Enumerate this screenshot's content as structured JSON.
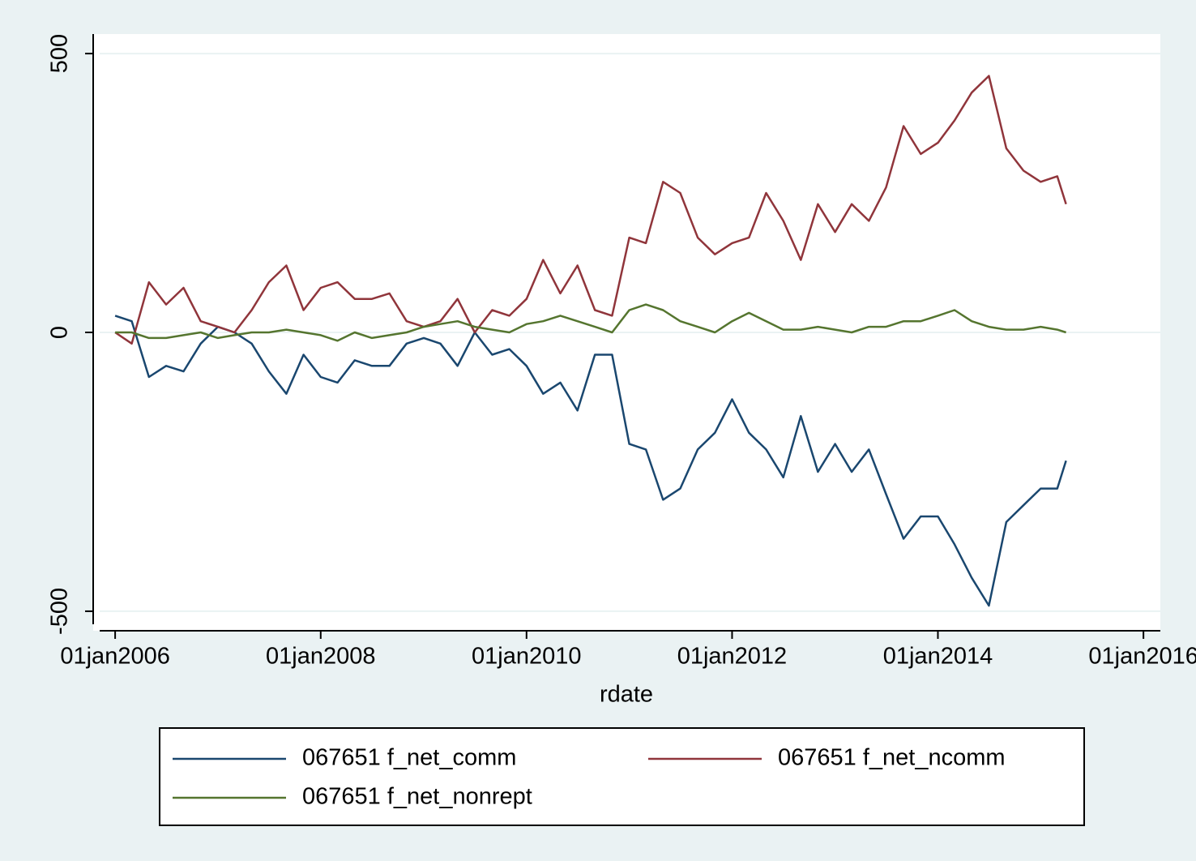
{
  "chart_data": {
    "type": "line",
    "x_label": "rdate",
    "x": [
      "2006-01-01",
      "2006-03-01",
      "2006-05-01",
      "2006-07-01",
      "2006-09-01",
      "2006-11-01",
      "2007-01-01",
      "2007-03-01",
      "2007-05-01",
      "2007-07-01",
      "2007-09-01",
      "2007-11-01",
      "2008-01-01",
      "2008-03-01",
      "2008-05-01",
      "2008-07-01",
      "2008-09-01",
      "2008-11-01",
      "2009-01-01",
      "2009-03-01",
      "2009-05-01",
      "2009-07-01",
      "2009-09-01",
      "2009-11-01",
      "2010-01-01",
      "2010-03-01",
      "2010-05-01",
      "2010-07-01",
      "2010-09-01",
      "2010-11-01",
      "2011-01-01",
      "2011-03-01",
      "2011-05-01",
      "2011-07-01",
      "2011-09-01",
      "2011-11-01",
      "2012-01-01",
      "2012-03-01",
      "2012-05-01",
      "2012-07-01",
      "2012-09-01",
      "2012-11-01",
      "2013-01-01",
      "2013-03-01",
      "2013-05-01",
      "2013-07-01",
      "2013-09-01",
      "2013-11-01",
      "2014-01-01",
      "2014-03-01",
      "2014-05-01",
      "2014-07-01",
      "2014-09-01",
      "2014-11-01",
      "2015-01-01",
      "2015-03-01",
      "2015-04-01"
    ],
    "series": [
      {
        "name": "067651 f_net_comm",
        "color": "#1a476f",
        "values": [
          30,
          20,
          -80,
          -60,
          -70,
          -20,
          10,
          0,
          -20,
          -70,
          -110,
          -40,
          -80,
          -90,
          -50,
          -60,
          -60,
          -20,
          -10,
          -20,
          -60,
          0,
          -40,
          -30,
          -60,
          -110,
          -90,
          -140,
          -40,
          -40,
          -200,
          -210,
          -300,
          -280,
          -210,
          -180,
          -120,
          -180,
          -210,
          -260,
          -150,
          -250,
          -200,
          -250,
          -210,
          -290,
          -370,
          -330,
          -330,
          -380,
          -440,
          -490,
          -340,
          -310,
          -280,
          -280,
          -230
        ]
      },
      {
        "name": "067651 f_net_ncomm",
        "color": "#90353b",
        "values": [
          0,
          -20,
          90,
          50,
          80,
          20,
          10,
          0,
          40,
          90,
          120,
          40,
          80,
          90,
          60,
          60,
          70,
          20,
          10,
          20,
          60,
          0,
          40,
          30,
          60,
          130,
          70,
          120,
          40,
          30,
          170,
          160,
          270,
          250,
          170,
          140,
          160,
          170,
          250,
          200,
          130,
          230,
          180,
          230,
          200,
          260,
          370,
          320,
          340,
          380,
          430,
          460,
          330,
          290,
          270,
          280,
          230
        ]
      },
      {
        "name": "067651 f_net_nonrept",
        "color": "#55752f",
        "values": [
          0,
          0,
          -10,
          -10,
          -5,
          0,
          -10,
          -5,
          0,
          0,
          5,
          0,
          -5,
          -15,
          0,
          -10,
          -5,
          0,
          10,
          15,
          20,
          10,
          5,
          0,
          15,
          20,
          30,
          20,
          10,
          0,
          40,
          50,
          40,
          20,
          10,
          0,
          20,
          35,
          20,
          5,
          5,
          10,
          5,
          0,
          10,
          10,
          20,
          20,
          30,
          40,
          20,
          10,
          5,
          5,
          10,
          5,
          0
        ]
      }
    ],
    "xlim": [
      "2005-10-15",
      "2016-03-01"
    ],
    "xticks": [
      {
        "value": "2006-01-01",
        "label": "01jan2006"
      },
      {
        "value": "2008-01-01",
        "label": "01jan2008"
      },
      {
        "value": "2010-01-01",
        "label": "01jan2010"
      },
      {
        "value": "2012-01-01",
        "label": "01jan2012"
      },
      {
        "value": "2014-01-01",
        "label": "01jan2014"
      },
      {
        "value": "2016-01-01",
        "label": "01jan2016"
      }
    ],
    "ylim": [
      -535,
      535
    ],
    "yticks": [
      -500,
      0,
      500
    ],
    "grid": true,
    "legend": "bottom"
  }
}
